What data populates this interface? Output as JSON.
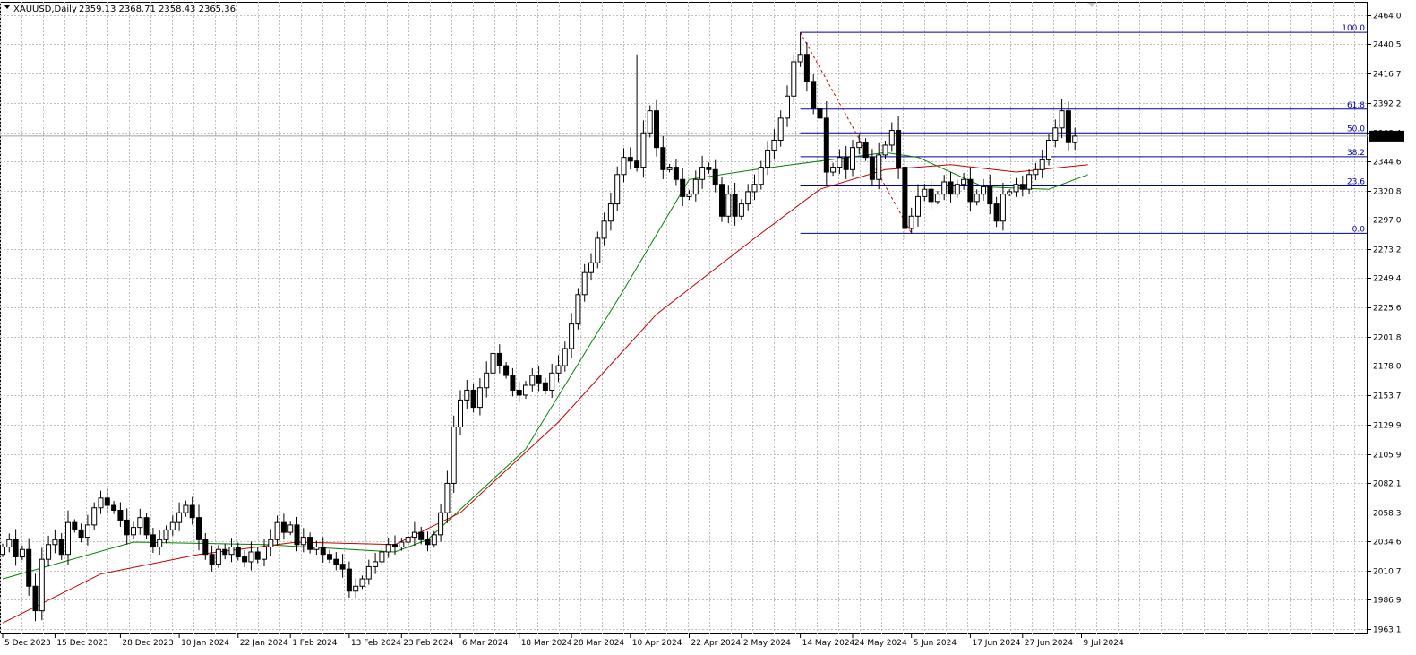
{
  "header": {
    "symbol": "XAUUSD,Daily",
    "ohlc": "2359.13 2368.71 2358.43 2365.36"
  },
  "chart_data": {
    "type": "candlestick",
    "symbol": "XAUUSD",
    "timeframe": "Daily",
    "grid": true,
    "price_axis": {
      "min": 1963.1,
      "max": 2464.0,
      "ticks": [
        "2464.0",
        "2440.5",
        "2416.7",
        "2392.2",
        "2368.4",
        "2344.6",
        "2320.8",
        "2297.0",
        "2273.2",
        "2249.4",
        "2225.6",
        "2201.8",
        "2178.0",
        "2153.7",
        "2129.9",
        "2105.9",
        "2082.1",
        "2058.3",
        "2034.6",
        "2010.7",
        "1986.9",
        "1963.1"
      ]
    },
    "current_price": 2365.36,
    "current_price_label": "2365.36",
    "date_labels": [
      "5 Dec 2023",
      "15 Dec 2023",
      "28 Dec 2023",
      "10 Jan 2024",
      "22 Jan 2024",
      "1 Feb 2024",
      "13 Feb 2024",
      "23 Feb 2024",
      "6 Mar 2024",
      "18 Mar 2024",
      "28 Mar 2024",
      "10 Apr 2024",
      "22 Apr 2024",
      "2 May 2024",
      "14 May 2024",
      "24 May 2024",
      "5 Jun 2024",
      "17 Jun 2024",
      "27 Jun 2024",
      "9 Jul 2024"
    ],
    "date_label_index": [
      0,
      8,
      18,
      27,
      36,
      44,
      53,
      61,
      70,
      79,
      87,
      96,
      105,
      113,
      122,
      130,
      139,
      148,
      156,
      165
    ],
    "closes": [
      2030,
      2036,
      2022,
      2028,
      1998,
      1978,
      2020,
      2032,
      2036,
      2024,
      2050,
      2044,
      2038,
      2048,
      2062,
      2070,
      2064,
      2060,
      2052,
      2040,
      2046,
      2054,
      2040,
      2030,
      2036,
      2044,
      2050,
      2058,
      2064,
      2054,
      2036,
      2024,
      2016,
      2028,
      2024,
      2030,
      2022,
      2018,
      2026,
      2020,
      2030,
      2036,
      2050,
      2042,
      2048,
      2032,
      2038,
      2028,
      2030,
      2024,
      2020,
      2016,
      2012,
      1994,
      1998,
      2004,
      2014,
      2018,
      2026,
      2032,
      2030,
      2034,
      2038,
      2042,
      2036,
      2032,
      2040,
      2058,
      2082,
      2128,
      2150,
      2158,
      2144,
      2160,
      2172,
      2188,
      2178,
      2170,
      2158,
      2154,
      2162,
      2170,
      2164,
      2158,
      2172,
      2178,
      2192,
      2212,
      2236,
      2254,
      2262,
      2282,
      2296,
      2310,
      2334,
      2348,
      2345,
      2340,
      2368,
      2386,
      2356,
      2338,
      2340,
      2330,
      2316,
      2318,
      2330,
      2340,
      2338,
      2326,
      2300,
      2318,
      2300,
      2310,
      2320,
      2326,
      2340,
      2354,
      2362,
      2380,
      2398,
      2426,
      2432,
      2410,
      2388,
      2380,
      2336,
      2340,
      2348,
      2338,
      2356,
      2360,
      2348,
      2330,
      2350,
      2358,
      2370,
      2340,
      2290,
      2300,
      2316,
      2322,
      2312,
      2318,
      2328,
      2318,
      2326,
      2330,
      2312,
      2318,
      2324,
      2310,
      2296,
      2318,
      2320,
      2326,
      2322,
      2334,
      2338,
      2346,
      2362,
      2372,
      2386,
      2360,
      2365.36
    ],
    "sma_fast": {
      "color": "#008000",
      "values_at": {
        "0": 2004,
        "20": 2034,
        "40": 2032,
        "60": 2026,
        "65": 2036,
        "80": 2110,
        "95": 2240,
        "105": 2330,
        "115": 2338,
        "125": 2345,
        "135": 2352,
        "140": 2348,
        "150": 2324,
        "160": 2322,
        "166": 2334
      }
    },
    "sma_slow": {
      "color": "#c00000",
      "values_at": {
        "0": 1968,
        "15": 2008,
        "30": 2024,
        "45": 2034,
        "60": 2032,
        "70": 2058,
        "85": 2132,
        "100": 2220,
        "115": 2282,
        "125": 2322,
        "135": 2338,
        "145": 2342,
        "155": 2336,
        "166": 2342
      }
    },
    "fibonacci": {
      "color": "#0000a0",
      "high": 2450.0,
      "low": 2286.0,
      "start_index": 122,
      "trend_from_index": 122,
      "trend_to_index": 139,
      "levels": [
        {
          "label": "100.0",
          "value": 2450.0
        },
        {
          "label": "61.8",
          "value": 2387.4
        },
        {
          "label": "50.0",
          "value": 2368.0
        },
        {
          "label": "38.2",
          "value": 2348.6
        },
        {
          "label": "23.6",
          "value": 2324.7
        },
        {
          "label": "0.0",
          "value": 2286.0
        }
      ]
    }
  }
}
